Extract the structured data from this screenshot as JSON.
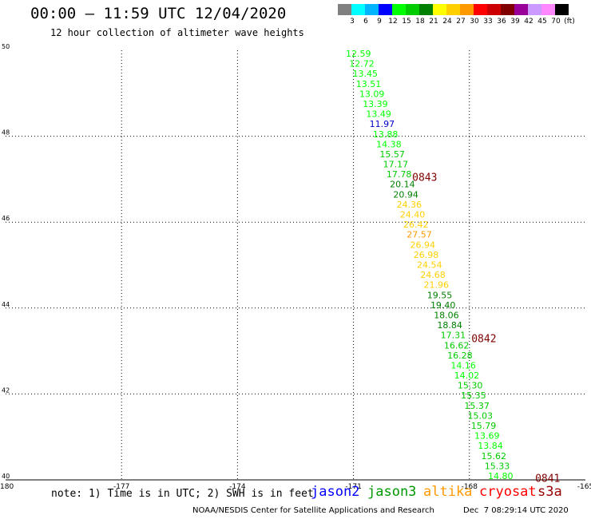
{
  "header": {
    "title": "00:00 – 11:59 UTC 12/04/2020",
    "subtitle": "12 hour collection of altimeter wave heights"
  },
  "colorbar": {
    "colors": [
      "#808080",
      "#00ffff",
      "#00b4ff",
      "#0000ff",
      "#00ff00",
      "#00cc00",
      "#008000",
      "#ffff00",
      "#ffd000",
      "#ff9900",
      "#ff0000",
      "#cc0000",
      "#800000",
      "#990099",
      "#cc99ff",
      "#ff88ff",
      "#000000"
    ],
    "labels": [
      "3",
      "6",
      "9",
      "12",
      "15",
      "18",
      "21",
      "24",
      "27",
      "30",
      "33",
      "36",
      "39",
      "42",
      "45",
      "70",
      "(ft)"
    ]
  },
  "map": {
    "lon_range": [
      -180,
      -165
    ],
    "lat_range": [
      40,
      50
    ],
    "lon_ticks": [
      "-180",
      "-177",
      "-174",
      "-171",
      "-168",
      "-165"
    ],
    "lat_ticks": [
      "50",
      "48",
      "46",
      "44",
      "42",
      "40"
    ],
    "grid": "dotted"
  },
  "chart_data": {
    "type": "scatter",
    "points": [
      {
        "v": "12.59",
        "c": "#00ff00"
      },
      {
        "v": "12.72",
        "c": "#00ff00"
      },
      {
        "v": "13.45",
        "c": "#00ff00"
      },
      {
        "v": "13.51",
        "c": "#00ff00"
      },
      {
        "v": "13.09",
        "c": "#00ff00"
      },
      {
        "v": "13.39",
        "c": "#00ff00"
      },
      {
        "v": "13.49",
        "c": "#00ff00"
      },
      {
        "v": "11.97",
        "c": "#0000cc"
      },
      {
        "v": "13.88",
        "c": "#00ff00"
      },
      {
        "v": "14.38",
        "c": "#00ff00"
      },
      {
        "v": "15.57",
        "c": "#00cc00"
      },
      {
        "v": "17.17",
        "c": "#00cc00"
      },
      {
        "v": "17.78",
        "c": "#00cc00"
      },
      {
        "v": "20.14",
        "c": "#008000"
      },
      {
        "v": "20.94",
        "c": "#008000"
      },
      {
        "v": "24.36",
        "c": "#ffd000"
      },
      {
        "v": "24.40",
        "c": "#ffd000"
      },
      {
        "v": "26.42",
        "c": "#ffd000"
      },
      {
        "v": "27.57",
        "c": "#ff9900"
      },
      {
        "v": "26.94",
        "c": "#ffd000"
      },
      {
        "v": "26.98",
        "c": "#ffd000"
      },
      {
        "v": "24.54",
        "c": "#ffd000"
      },
      {
        "v": "24.68",
        "c": "#ffd000"
      },
      {
        "v": "21.96",
        "c": "#ffd000"
      },
      {
        "v": "19.55",
        "c": "#008000"
      },
      {
        "v": "19.40",
        "c": "#008000"
      },
      {
        "v": "18.06",
        "c": "#008000"
      },
      {
        "v": "18.84",
        "c": "#008000"
      },
      {
        "v": "17.31",
        "c": "#00cc00"
      },
      {
        "v": "16.62",
        "c": "#00cc00"
      },
      {
        "v": "16.28",
        "c": "#00cc00"
      },
      {
        "v": "14.16",
        "c": "#00ff00"
      },
      {
        "v": "14.02",
        "c": "#00ff00"
      },
      {
        "v": "15.30",
        "c": "#00cc00"
      },
      {
        "v": "15.35",
        "c": "#00cc00"
      },
      {
        "v": "15.37",
        "c": "#00cc00"
      },
      {
        "v": "15.03",
        "c": "#00cc00"
      },
      {
        "v": "15.79",
        "c": "#00cc00"
      },
      {
        "v": "13.69",
        "c": "#00ff00"
      },
      {
        "v": "13.84",
        "c": "#00ff00"
      },
      {
        "v": "15.62",
        "c": "#00cc00"
      },
      {
        "v": "15.33",
        "c": "#00cc00"
      },
      {
        "v": "14.80",
        "c": "#00ff00"
      }
    ],
    "pass_labels": [
      {
        "text": "0843",
        "lat": 47.05,
        "lon": -169.48
      },
      {
        "text": "0842",
        "lat": 43.3,
        "lon": -167.95
      },
      {
        "text": "0841",
        "lat": 40.05,
        "lon": -166.3
      }
    ]
  },
  "note": "note: 1) Time is in UTC; 2) SWH is in feet",
  "satellites": [
    {
      "name": "jason2",
      "color": "#0000ff"
    },
    {
      "name": "jason3",
      "color": "#009900"
    },
    {
      "name": "altika",
      "color": "#ff9900"
    },
    {
      "name": "cryosat",
      "color": "#ff0000"
    },
    {
      "name": "s3a",
      "color": "#990000"
    }
  ],
  "footer": {
    "credit": "NOAA/NESDIS Center for Satellite Applications and Research",
    "timestamp": "Dec  7 08:29:14 UTC 2020"
  }
}
